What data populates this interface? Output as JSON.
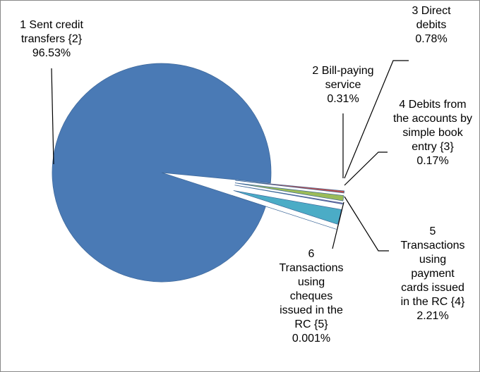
{
  "chart_data": {
    "type": "pie",
    "categories": [
      "1 Sent credit transfers {2}",
      "2 Bill-paying service",
      "3 Direct debits",
      "4 Debits from the accounts by simple book entry {3}",
      "5 Transactions using payment cards issued in the RC {4}",
      "6 Transactions using cheques issued in the RC {5}"
    ],
    "values": [
      96.53,
      0.31,
      0.78,
      0.17,
      2.21,
      0.001
    ],
    "value_labels": [
      "96.53%",
      "0.31%",
      "0.78%",
      "0.17%",
      "2.21%",
      "0.001%"
    ],
    "colors": [
      "#4a7ab5",
      "#c0504d",
      "#9bbb59",
      "#8064a2",
      "#4bacc6",
      "#f79646"
    ]
  }
}
